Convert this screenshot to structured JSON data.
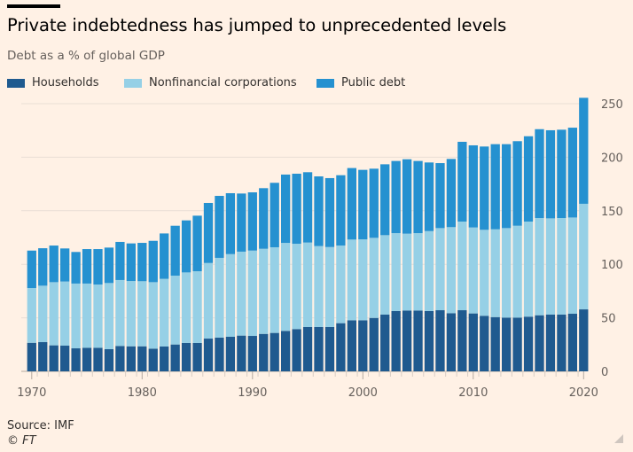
{
  "chart_data": {
    "type": "bar",
    "stacked": true,
    "title": "Private indebtedness has jumped to unprecedented levels",
    "subtitle": "Debt as a % of global GDP",
    "xlabel": "",
    "ylabel": "",
    "ylim": [
      0,
      260
    ],
    "yticks": [
      0,
      50,
      100,
      150,
      200,
      250
    ],
    "xticks": [
      1970,
      1980,
      1990,
      2000,
      2010,
      2020
    ],
    "grid": true,
    "legend_position": "top-left",
    "y_axis_side": "right",
    "categories": [
      1970,
      1971,
      1972,
      1973,
      1974,
      1975,
      1976,
      1977,
      1978,
      1979,
      1980,
      1981,
      1982,
      1983,
      1984,
      1985,
      1986,
      1987,
      1988,
      1989,
      1990,
      1991,
      1992,
      1993,
      1994,
      1995,
      1996,
      1997,
      1998,
      1999,
      2000,
      2001,
      2002,
      2003,
      2004,
      2005,
      2006,
      2007,
      2008,
      2009,
      2010,
      2011,
      2012,
      2013,
      2014,
      2015,
      2016,
      2017,
      2018,
      2019,
      2020
    ],
    "series": [
      {
        "name": "Households",
        "color": "#1f5a8f",
        "values": [
          26.7,
          27.3,
          24.3,
          24.0,
          21.5,
          22.0,
          22.0,
          20.7,
          23.7,
          23.4,
          23.4,
          21.2,
          23.2,
          25.1,
          26.5,
          26.5,
          30.6,
          31.5,
          32.3,
          33.4,
          33.1,
          35.0,
          35.9,
          37.8,
          39.5,
          41.4,
          41.4,
          41.4,
          45.0,
          47.7,
          47.7,
          49.9,
          53.0,
          56.3,
          56.8,
          56.8,
          56.3,
          57.1,
          54.3,
          57.1,
          54.1,
          51.9,
          50.7,
          50.2,
          50.2,
          51.1,
          52.4,
          53.0,
          53.0,
          53.8,
          57.9
        ]
      },
      {
        "name": "Nonfinancial corporations",
        "color": "#96d0e6",
        "values": [
          51.1,
          52.7,
          59.0,
          59.9,
          60.5,
          60.0,
          59.1,
          61.8,
          61.6,
          61.0,
          60.8,
          62.1,
          63.2,
          64.3,
          65.9,
          67.0,
          70.6,
          74.5,
          77.2,
          78.4,
          79.7,
          79.5,
          80.0,
          82.2,
          79.7,
          78.9,
          75.6,
          74.7,
          72.5,
          75.4,
          75.6,
          74.8,
          74.2,
          72.8,
          71.8,
          72.3,
          74.7,
          76.7,
          80.4,
          82.8,
          80.3,
          80.3,
          82.0,
          83.6,
          85.8,
          88.8,
          90.8,
          89.9,
          90.2,
          89.9,
          98.6
        ]
      },
      {
        "name": "Public debt",
        "color": "#2591d0",
        "values": [
          35.0,
          35.0,
          34.2,
          30.9,
          29.5,
          32.2,
          33.1,
          33.1,
          35.6,
          35.1,
          35.8,
          38.6,
          42.4,
          46.6,
          48.6,
          51.9,
          56.1,
          57.9,
          56.9,
          54.3,
          54.4,
          56.6,
          60.2,
          63.8,
          65.4,
          65.7,
          65.1,
          64.4,
          65.7,
          66.8,
          64.9,
          64.6,
          66.2,
          67.4,
          69.5,
          67.4,
          64.1,
          60.7,
          63.7,
          74.5,
          76.7,
          77.8,
          79.5,
          78.4,
          79.0,
          79.7,
          83.0,
          82.3,
          82.5,
          83.9,
          99.0
        ]
      }
    ]
  },
  "footer": {
    "source": "Source: IMF",
    "copyright": "© FT"
  }
}
